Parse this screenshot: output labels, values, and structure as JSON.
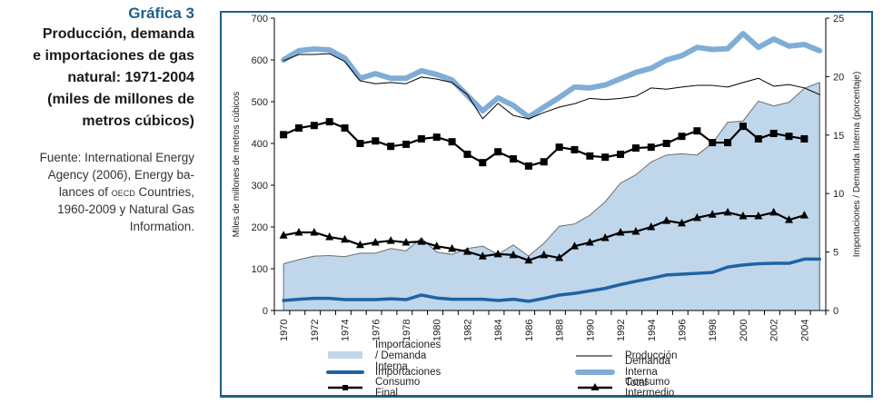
{
  "side_panel": {
    "figure_number": "Gráfica 3",
    "title_lines": [
      "Producción, demanda",
      "e importaciones de gas",
      "natural: 1971-2004",
      "(miles de millones de",
      "metros cúbicos)"
    ],
    "source_lines": [
      "Fuente: International Energy",
      "Agency (2006), Energy ba-",
      "lances of",
      "OECD",
      "Countries,",
      "1960-2009 y Natural Gas",
      "Information."
    ]
  },
  "colors": {
    "frame": "#1f5f8b",
    "area_fill": "#c0d6ea",
    "area_edge": "#6d6d6d",
    "importaciones": "#1e63a6",
    "demanda": "#7fadd6",
    "black": "#000000"
  },
  "chart_data": {
    "type": "line",
    "title": "Producción, demanda e importaciones de gas natural: 1971-2004 (miles de millones de metros cúbicos)",
    "x": [
      1970,
      1971,
      1972,
      1973,
      1974,
      1975,
      1976,
      1977,
      1978,
      1979,
      1980,
      1981,
      1982,
      1983,
      1984,
      1985,
      1986,
      1987,
      1988,
      1989,
      1990,
      1991,
      1992,
      1993,
      1994,
      1995,
      1996,
      1997,
      1998,
      1999,
      2000,
      2001,
      2002,
      2003,
      2004,
      2005
    ],
    "x_tick_labels": [
      "1970",
      "1972",
      "1974",
      "1976",
      "1978",
      "1980",
      "1982",
      "1984",
      "1986",
      "1988",
      "1990",
      "1992",
      "1994",
      "1996",
      "1998",
      "2000",
      "2002",
      "2004"
    ],
    "ylabel": "Miles de millones de metros cúbicos",
    "ylim": [
      0,
      700
    ],
    "y_ticks": [
      0,
      100,
      200,
      300,
      400,
      500,
      600,
      700
    ],
    "y2label": "Importaciones / Demanda Interna (porcentaje)",
    "y2lim": [
      0,
      25
    ],
    "y2_ticks": [
      0,
      5,
      10,
      15,
      20,
      25
    ],
    "grid": false,
    "legend_position": "bottom",
    "series": [
      {
        "name": "Importaciones / Demanda Interna",
        "type": "area",
        "axis": "right",
        "values": [
          4.0,
          4.35,
          4.65,
          4.7,
          4.6,
          4.9,
          4.9,
          5.3,
          5.1,
          6.2,
          5.0,
          4.8,
          5.3,
          5.5,
          4.8,
          5.6,
          4.65,
          5.75,
          7.2,
          7.4,
          8.15,
          9.3,
          10.9,
          11.6,
          12.7,
          13.3,
          13.4,
          13.3,
          14.3,
          16.1,
          16.2,
          17.9,
          17.5,
          17.8,
          19.0,
          19.5
        ]
      },
      {
        "name": "Producción",
        "type": "line",
        "axis": "left",
        "values": [
          598,
          613,
          613,
          615,
          596,
          550,
          543,
          546,
          543,
          559,
          554,
          546,
          517,
          459,
          496,
          467,
          459,
          474,
          487,
          495,
          508,
          505,
          508,
          513,
          533,
          530,
          535,
          539,
          539,
          535,
          546,
          556,
          537,
          541,
          533,
          517
        ]
      },
      {
        "name": "Importaciones",
        "type": "line",
        "axis": "left",
        "values": [
          24,
          27,
          29,
          29,
          26,
          26,
          26,
          28,
          26,
          37,
          30,
          27,
          27,
          27,
          24,
          27,
          22,
          29,
          37,
          41,
          47,
          53,
          62,
          70,
          77,
          85,
          87,
          89,
          91,
          104,
          109,
          112,
          113,
          113,
          123,
          123
        ]
      },
      {
        "name": "Demanda Interna Total",
        "type": "line",
        "axis": "left",
        "values": [
          600,
          622,
          626,
          624,
          604,
          556,
          567,
          556,
          556,
          574,
          565,
          552,
          515,
          478,
          509,
          491,
          463,
          487,
          510,
          535,
          533,
          540,
          555,
          570,
          580,
          600,
          610,
          630,
          625,
          627,
          663,
          630,
          650,
          633,
          637,
          622
        ]
      },
      {
        "name": "Consumo Final",
        "type": "line",
        "marker": "square",
        "axis": "left",
        "values": [
          421,
          437,
          443,
          452,
          437,
          400,
          406,
          393,
          398,
          411,
          415,
          404,
          374,
          354,
          380,
          363,
          346,
          356,
          391,
          385,
          370,
          367,
          374,
          389,
          391,
          400,
          417,
          430,
          402,
          402,
          441,
          411,
          424,
          417,
          411,
          null
        ]
      },
      {
        "name": "Consumo Intermedio",
        "type": "line",
        "marker": "triangle",
        "axis": "left",
        "values": [
          180,
          187,
          187,
          176,
          170,
          157,
          163,
          167,
          163,
          165,
          154,
          148,
          141,
          130,
          135,
          133,
          120,
          133,
          126,
          154,
          163,
          174,
          187,
          189,
          200,
          215,
          209,
          222,
          230,
          235,
          226,
          226,
          235,
          217,
          228,
          null
        ]
      }
    ]
  },
  "legend": [
    {
      "label": "Importaciones / Demanda Interna",
      "symbol": "area"
    },
    {
      "label": "Producción",
      "symbol": "thin-line"
    },
    {
      "label": "Importaciones",
      "symbol": "thick-dark-line"
    },
    {
      "label": "Demanda Interna Total",
      "symbol": "thick-light-line"
    },
    {
      "label": "Consumo Final",
      "symbol": "square-marker-line"
    },
    {
      "label": "Consumo Intermedio",
      "symbol": "triangle-marker-line"
    }
  ]
}
